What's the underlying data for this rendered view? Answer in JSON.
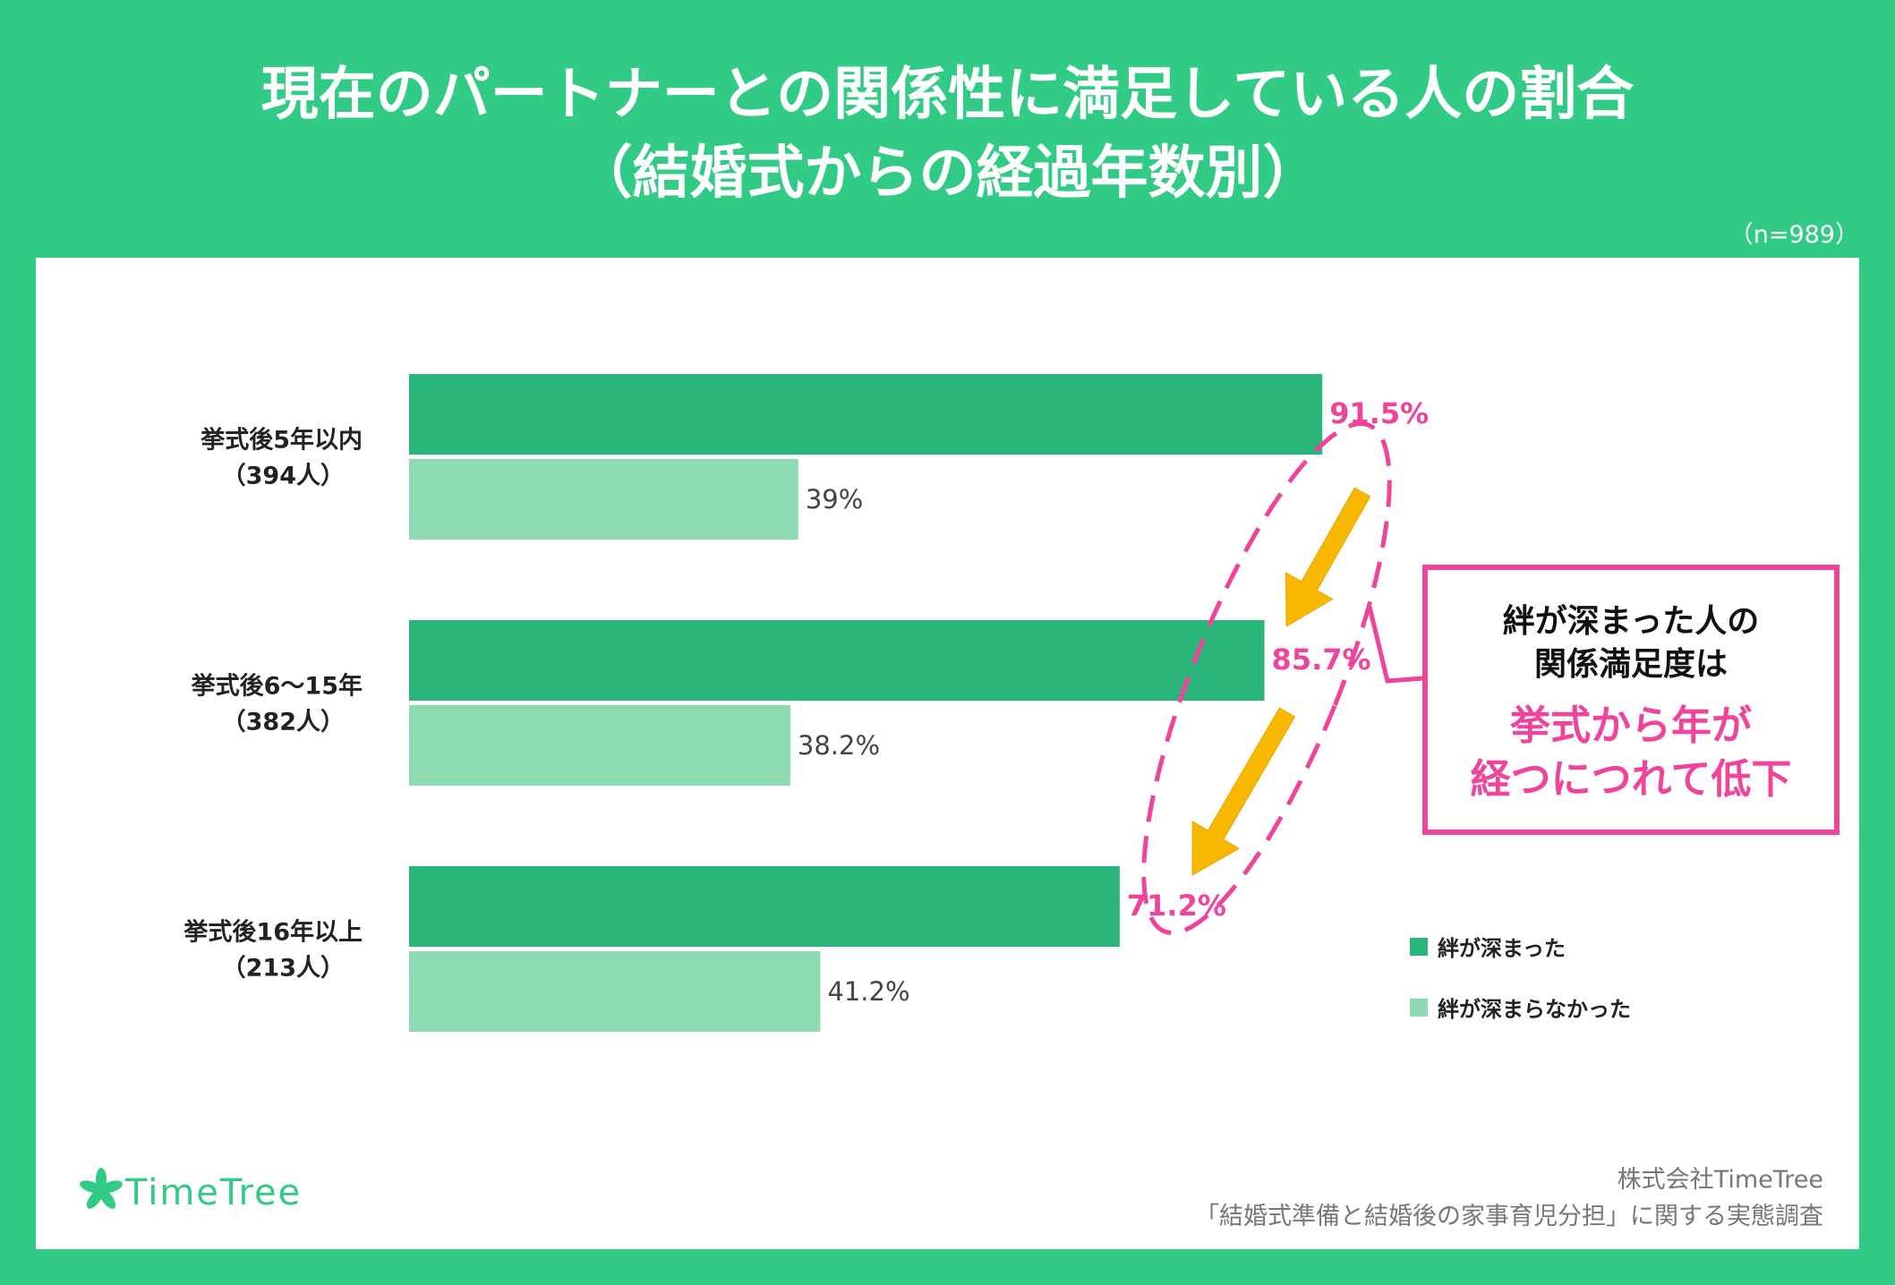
{
  "title": {
    "line1": "現在のパートナーとの関係性に満足している人の割合",
    "line2": "（結婚式からの経過年数別）"
  },
  "sample_note": "（n=989）",
  "colors": {
    "background": "#31cb86",
    "series_deepened": "#2ab57a",
    "series_not_deepened": "#8ddbb0",
    "accent": "#f0439c",
    "arrow": "#f8b800",
    "label_dark": "#222222",
    "label_gray": "#444444"
  },
  "chart_data": {
    "type": "bar",
    "orientation": "horizontal",
    "categories": [
      {
        "line1": "挙式後5年以内",
        "line2": "（394人）"
      },
      {
        "line1": "挙式後6〜15年",
        "line2": "（382人）"
      },
      {
        "line1": "挙式後16年以上",
        "line2": "（213人）"
      }
    ],
    "series": [
      {
        "name": "絆が深まった",
        "values": [
          91.5,
          85.7,
          71.2
        ],
        "labels": [
          "91.5%",
          "85.7%",
          "71.2%"
        ]
      },
      {
        "name": "絆が深まらなかった",
        "values": [
          39,
          38.2,
          41.2
        ],
        "labels": [
          "39%",
          "38.2%",
          "41.2%"
        ]
      }
    ],
    "xlim": [
      0,
      100
    ],
    "grid": false,
    "legend_position": "bottom-right"
  },
  "callout": {
    "lines": [
      "絆が深まった人の",
      "関係満足度は",
      "挙式から年が",
      "経つにつれて低下"
    ]
  },
  "footer": {
    "logo_text": "TimeTree",
    "company": "株式会社TimeTree",
    "survey": "「結婚式準備と結婚後の家事育児分担」に関する実態調査"
  }
}
